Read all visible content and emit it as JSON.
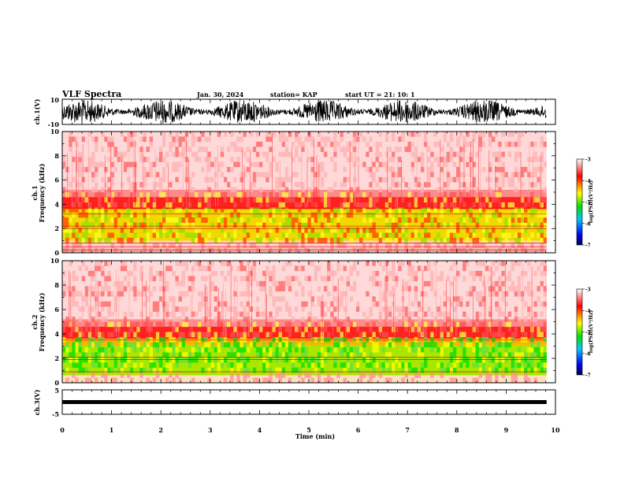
{
  "header": {
    "title": "VLF Spectra",
    "date": "Jan. 30, 2024",
    "station": "station= KAP",
    "start": "start  UT  =   21: 10: 1"
  },
  "chart_data": [
    {
      "type": "line",
      "panel": "ch1-waveform",
      "ylabel": "ch.1(V)",
      "ylim": [
        -10,
        10
      ],
      "ytick_labels": [
        "10",
        "-10"
      ],
      "xlim": [
        0,
        10
      ]
    },
    {
      "type": "heatmap",
      "panel": "ch1-spectrogram",
      "ylabel": "ch.1\nFrequency (kHz)",
      "ylim": [
        0,
        10
      ],
      "yticks": [
        0,
        2,
        4,
        6,
        8,
        10
      ],
      "xlim": [
        0,
        10
      ],
      "data_xmax": 9.82,
      "colorbar": {
        "label": "log(PSD)(V²/Hz)",
        "range": [
          -7,
          -3
        ],
        "ticks": [
          -3,
          -4,
          -5,
          -6,
          -7
        ]
      }
    },
    {
      "type": "heatmap",
      "panel": "ch2-spectrogram",
      "ylabel": "ch.2\nFrequency (kHz)",
      "ylim": [
        0,
        10
      ],
      "yticks": [
        0,
        2,
        4,
        6,
        8,
        10
      ],
      "xlim": [
        0,
        10
      ],
      "data_xmax": 9.82,
      "colorbar": {
        "label": "log(PSD)(V²/Hz)",
        "range": [
          -7,
          -3
        ],
        "ticks": [
          -3,
          -4,
          -5,
          -6,
          -7
        ]
      }
    },
    {
      "type": "line",
      "panel": "ch3-waveform",
      "ylabel": "ch.3(V)",
      "ylim": [
        -5,
        5
      ],
      "ytick_labels": [
        "5",
        "-5"
      ],
      "xlim": [
        0,
        10
      ],
      "xticks": [
        0,
        1,
        2,
        3,
        4,
        5,
        6,
        7,
        8,
        9,
        10
      ],
      "xlabel": "Time (min)"
    }
  ],
  "colors": {
    "spectrogram_low": "#e0f0ff",
    "spectrogram_mid": "#ff0000",
    "spectrogram_high": "#00e000",
    "colorbar_stops": [
      "#000050",
      "#0000ff",
      "#00c8ff",
      "#00e000",
      "#ffff00",
      "#ff8000",
      "#ff0000",
      "#ffffff"
    ]
  }
}
